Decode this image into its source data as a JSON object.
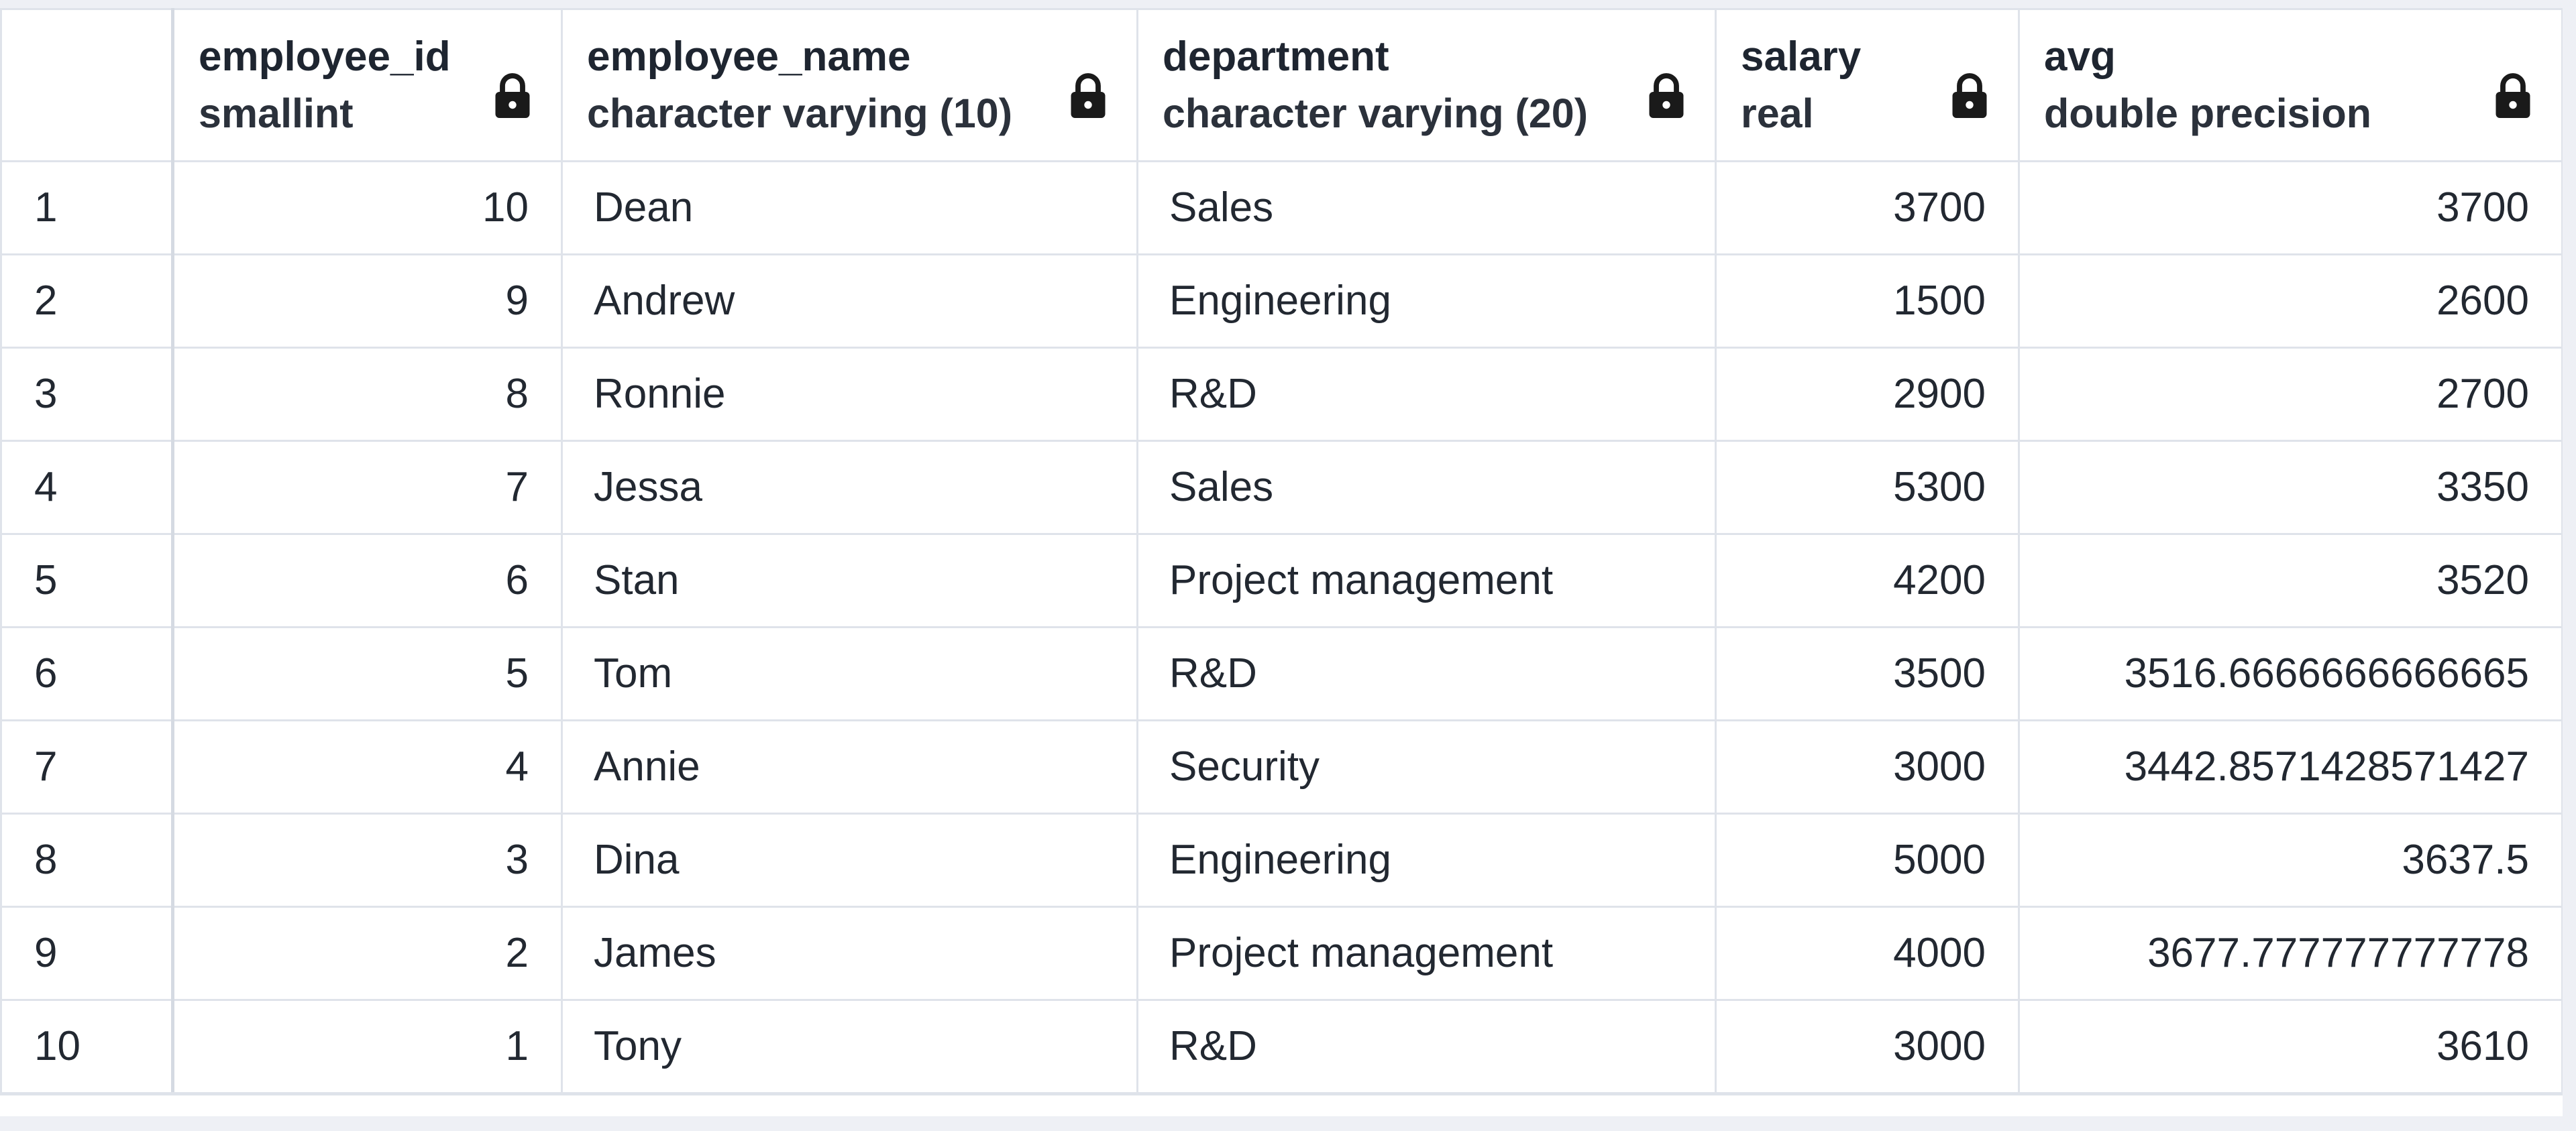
{
  "columns": [
    {
      "name": "employee_id",
      "type": "smallint",
      "icon": "lock-icon"
    },
    {
      "name": "employee_name",
      "type": "character varying (10)",
      "icon": "lock-icon"
    },
    {
      "name": "department",
      "type": "character varying (20)",
      "icon": "lock-icon"
    },
    {
      "name": "salary",
      "type": "real",
      "icon": "lock-icon"
    },
    {
      "name": "avg",
      "type": "double precision",
      "icon": "lock-icon"
    }
  ],
  "rows": [
    {
      "n": "1",
      "employee_id": "10",
      "employee_name": "Dean",
      "department": "Sales",
      "salary": "3700",
      "avg": "3700"
    },
    {
      "n": "2",
      "employee_id": "9",
      "employee_name": "Andrew",
      "department": "Engineering",
      "salary": "1500",
      "avg": "2600"
    },
    {
      "n": "3",
      "employee_id": "8",
      "employee_name": "Ronnie",
      "department": "R&D",
      "salary": "2900",
      "avg": "2700"
    },
    {
      "n": "4",
      "employee_id": "7",
      "employee_name": "Jessa",
      "department": "Sales",
      "salary": "5300",
      "avg": "3350"
    },
    {
      "n": "5",
      "employee_id": "6",
      "employee_name": "Stan",
      "department": "Project management",
      "salary": "4200",
      "avg": "3520"
    },
    {
      "n": "6",
      "employee_id": "5",
      "employee_name": "Tom",
      "department": "R&D",
      "salary": "3500",
      "avg": "3516.6666666666665"
    },
    {
      "n": "7",
      "employee_id": "4",
      "employee_name": "Annie",
      "department": "Security",
      "salary": "3000",
      "avg": "3442.8571428571427"
    },
    {
      "n": "8",
      "employee_id": "3",
      "employee_name": "Dina",
      "department": "Engineering",
      "salary": "5000",
      "avg": "3637.5"
    },
    {
      "n": "9",
      "employee_id": "2",
      "employee_name": "James",
      "department": "Project management",
      "salary": "4000",
      "avg": "3677.777777777778"
    },
    {
      "n": "10",
      "employee_id": "1",
      "employee_name": "Tony",
      "department": "R&D",
      "salary": "3000",
      "avg": "3610"
    }
  ],
  "colors": {
    "grid_line": "#dfe3ea",
    "header_text": "#1e2530",
    "cell_text": "#222831",
    "background": "#eef0f5"
  }
}
